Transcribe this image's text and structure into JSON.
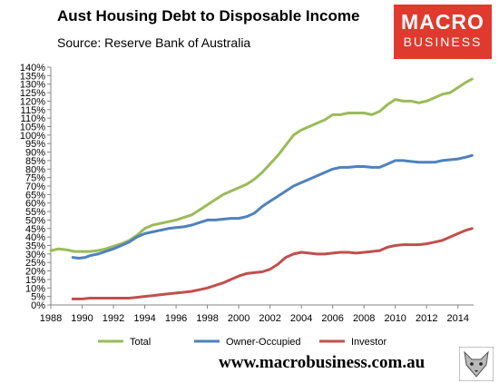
{
  "header": {
    "title": "Aust Housing Debt to Disposable Income",
    "subtitle": "Source: Reserve Bank of Australia"
  },
  "logo": {
    "line1": "MACRO",
    "line2": "BUSINESS",
    "color": "#e03a2e"
  },
  "footer": {
    "website": "www.macrobusiness.com.au"
  },
  "chart_data": {
    "type": "line",
    "title": "Aust Housing Debt to Disposable Income",
    "subtitle": "Source: Reserve Bank of Australia",
    "xlabel": "",
    "ylabel": "",
    "xlim": [
      1988,
      2015
    ],
    "ylim": [
      0,
      140
    ],
    "x_ticks": [
      1988,
      1990,
      1992,
      1994,
      1996,
      1998,
      2000,
      2002,
      2004,
      2006,
      2008,
      2010,
      2012,
      2014
    ],
    "y_ticks": [
      0,
      5,
      10,
      15,
      20,
      25,
      30,
      35,
      40,
      45,
      50,
      55,
      60,
      65,
      70,
      75,
      80,
      85,
      90,
      95,
      100,
      105,
      110,
      115,
      120,
      125,
      130,
      135,
      140
    ],
    "y_tick_format": "percent",
    "grid": false,
    "legend": "bottom",
    "series": [
      {
        "name": "Total",
        "color": "#9bbb59",
        "points": [
          [
            1988,
            32
          ],
          [
            1988.5,
            33
          ],
          [
            1989,
            32.5
          ],
          [
            1989.5,
            31.5
          ],
          [
            1990,
            31.5
          ],
          [
            1990.5,
            31.5
          ],
          [
            1991,
            32
          ],
          [
            1991.5,
            33
          ],
          [
            1992,
            34.5
          ],
          [
            1992.5,
            36
          ],
          [
            1993,
            38
          ],
          [
            1993.5,
            41
          ],
          [
            1994,
            45
          ],
          [
            1994.5,
            47
          ],
          [
            1995,
            48
          ],
          [
            1995.5,
            49
          ],
          [
            1996,
            50
          ],
          [
            1996.5,
            51.5
          ],
          [
            1997,
            53
          ],
          [
            1997.5,
            56
          ],
          [
            1998,
            59
          ],
          [
            1998.5,
            62
          ],
          [
            1999,
            65
          ],
          [
            1999.5,
            67
          ],
          [
            2000,
            69
          ],
          [
            2000.5,
            71
          ],
          [
            2001,
            74
          ],
          [
            2001.5,
            78
          ],
          [
            2002,
            83
          ],
          [
            2002.5,
            88
          ],
          [
            2003,
            94
          ],
          [
            2003.5,
            100
          ],
          [
            2004,
            103
          ],
          [
            2004.5,
            105
          ],
          [
            2005,
            107
          ],
          [
            2005.5,
            109
          ],
          [
            2006,
            112
          ],
          [
            2006.5,
            112
          ],
          [
            2007,
            113
          ],
          [
            2007.5,
            113
          ],
          [
            2008,
            113
          ],
          [
            2008.5,
            112
          ],
          [
            2009,
            114
          ],
          [
            2009.5,
            118
          ],
          [
            2010,
            121
          ],
          [
            2010.5,
            120
          ],
          [
            2011,
            120
          ],
          [
            2011.5,
            119
          ],
          [
            2012,
            120
          ],
          [
            2012.5,
            122
          ],
          [
            2013,
            124
          ],
          [
            2013.5,
            125
          ],
          [
            2014,
            128
          ],
          [
            2014.5,
            131
          ],
          [
            2014.9,
            133
          ]
        ]
      },
      {
        "name": "Owner-Occupied",
        "color": "#4f81bd",
        "points": [
          [
            1989.4,
            28
          ],
          [
            1989.8,
            27.5
          ],
          [
            1990.2,
            28
          ],
          [
            1990.5,
            29
          ],
          [
            1991,
            30
          ],
          [
            1991.5,
            31.5
          ],
          [
            1992,
            33
          ],
          [
            1992.5,
            35
          ],
          [
            1993,
            37
          ],
          [
            1993.5,
            40
          ],
          [
            1994,
            42
          ],
          [
            1994.5,
            43
          ],
          [
            1995,
            44
          ],
          [
            1995.5,
            45
          ],
          [
            1996,
            45.5
          ],
          [
            1996.5,
            46
          ],
          [
            1997,
            47
          ],
          [
            1997.5,
            48.5
          ],
          [
            1998,
            50
          ],
          [
            1998.5,
            50
          ],
          [
            1999,
            50.5
          ],
          [
            1999.5,
            51
          ],
          [
            2000,
            51
          ],
          [
            2000.5,
            52
          ],
          [
            2001,
            54
          ],
          [
            2001.5,
            58
          ],
          [
            2002,
            61
          ],
          [
            2002.5,
            64
          ],
          [
            2003,
            67
          ],
          [
            2003.5,
            70
          ],
          [
            2004,
            72
          ],
          [
            2004.5,
            74
          ],
          [
            2005,
            76
          ],
          [
            2005.5,
            78
          ],
          [
            2006,
            80
          ],
          [
            2006.5,
            81
          ],
          [
            2007,
            81
          ],
          [
            2007.5,
            81.5
          ],
          [
            2008,
            81.5
          ],
          [
            2008.5,
            81
          ],
          [
            2009,
            81
          ],
          [
            2009.5,
            83
          ],
          [
            2010,
            85
          ],
          [
            2010.5,
            85
          ],
          [
            2011,
            84.5
          ],
          [
            2011.5,
            84
          ],
          [
            2012,
            84
          ],
          [
            2012.5,
            84
          ],
          [
            2013,
            85
          ],
          [
            2013.5,
            85.5
          ],
          [
            2014,
            86
          ],
          [
            2014.5,
            87
          ],
          [
            2014.9,
            88
          ]
        ]
      },
      {
        "name": "Investor",
        "color": "#c0504d",
        "points": [
          [
            1989.4,
            3.5
          ],
          [
            1990,
            3.5
          ],
          [
            1990.5,
            4
          ],
          [
            1991,
            4
          ],
          [
            1991.5,
            4
          ],
          [
            1992,
            4
          ],
          [
            1992.5,
            4
          ],
          [
            1993,
            4
          ],
          [
            1993.5,
            4.5
          ],
          [
            1994,
            5
          ],
          [
            1994.5,
            5.5
          ],
          [
            1995,
            6
          ],
          [
            1995.5,
            6.5
          ],
          [
            1996,
            7
          ],
          [
            1996.5,
            7.5
          ],
          [
            1997,
            8
          ],
          [
            1997.5,
            9
          ],
          [
            1998,
            10
          ],
          [
            1998.5,
            11.5
          ],
          [
            1999,
            13
          ],
          [
            1999.5,
            15
          ],
          [
            2000,
            17
          ],
          [
            2000.5,
            18.5
          ],
          [
            2001,
            19
          ],
          [
            2001.5,
            19.5
          ],
          [
            2002,
            21
          ],
          [
            2002.5,
            24
          ],
          [
            2003,
            28
          ],
          [
            2003.5,
            30
          ],
          [
            2004,
            31
          ],
          [
            2004.5,
            30.5
          ],
          [
            2005,
            30
          ],
          [
            2005.5,
            30
          ],
          [
            2006,
            30.5
          ],
          [
            2006.5,
            31
          ],
          [
            2007,
            31
          ],
          [
            2007.5,
            30.5
          ],
          [
            2008,
            31
          ],
          [
            2008.5,
            31.5
          ],
          [
            2009,
            32
          ],
          [
            2009.5,
            34
          ],
          [
            2010,
            35
          ],
          [
            2010.5,
            35.5
          ],
          [
            2011,
            35.5
          ],
          [
            2011.5,
            35.5
          ],
          [
            2012,
            36
          ],
          [
            2012.5,
            37
          ],
          [
            2013,
            38
          ],
          [
            2013.5,
            40
          ],
          [
            2014,
            42
          ],
          [
            2014.5,
            44
          ],
          [
            2014.9,
            45
          ]
        ]
      }
    ]
  }
}
